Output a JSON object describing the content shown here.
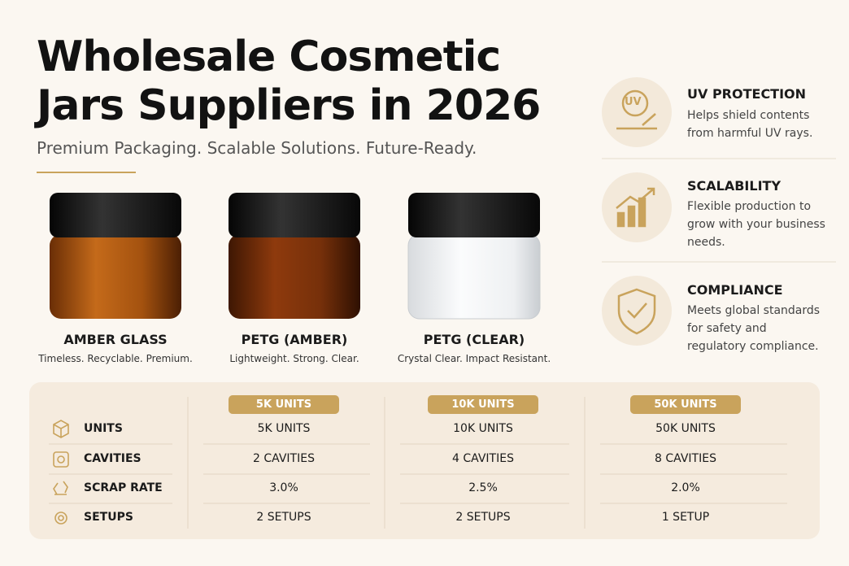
{
  "header": {
    "title": "Wholesale Cosmetic Jars Suppliers in 2026",
    "subtitle": "Premium Packaging. Scalable Solutions. Future-Ready."
  },
  "products": [
    {
      "name": "AMBER GLASS",
      "tagline": "Timeless. Recyclable. Premium."
    },
    {
      "name": "PETG (AMBER)",
      "tagline": "Lightweight. Strong. Clear."
    },
    {
      "name": "PETG (CLEAR)",
      "tagline": "Crystal Clear. Impact Resistant."
    }
  ],
  "features": [
    {
      "icon_text": "UV",
      "title": "UV PROTECTION",
      "description": "Helps shield contents from harmful UV rays."
    },
    {
      "title": "SCALABILITY",
      "description": "Flexible production to grow with your business needs."
    },
    {
      "title": "COMPLIANCE",
      "description": "Meets global standards for safety and regulatory compliance."
    }
  ],
  "table": {
    "columns": [
      "5K UNITS",
      "10K UNITS",
      "50K UNITS"
    ],
    "rows": [
      {
        "label": "UNITS",
        "cells": [
          "5K UNITS",
          "10K UNITS",
          "50K UNITS"
        ]
      },
      {
        "label": "CAVITIES",
        "cells": [
          "2 CAVITIES",
          "4 CAVITIES",
          "8 CAVITIES"
        ]
      },
      {
        "label": "SCRAP RATE",
        "cells": [
          "3.0%",
          "2.5%",
          "2.0%"
        ]
      },
      {
        "label": "SETUPS",
        "cells": [
          "2 SETUPS",
          "2 SETUPS",
          "1 SETUP"
        ]
      }
    ]
  }
}
